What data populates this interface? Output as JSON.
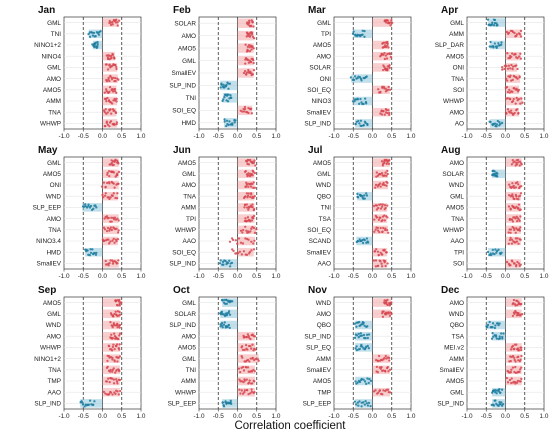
{
  "chart_data": {
    "type": "scatter",
    "xlabel": "Correlation coefficient",
    "xlim": [
      -1.0,
      1.0
    ],
    "xticks": [
      "-1.0",
      "-0.5",
      "0.0",
      "0.5",
      "1.0"
    ],
    "xtick_values": [
      -1.0,
      -0.5,
      0.0,
      0.5,
      1.0
    ],
    "reference_lines": [
      -0.5,
      0.0,
      0.5
    ],
    "colors": {
      "positive": "#d64550",
      "negative": "#1a7a9e",
      "pos_band": "#f3a6a6",
      "neg_band": "#8ec6dc"
    },
    "panels": [
      {
        "title": "Jan",
        "indices": [
          {
            "name": "GML",
            "min": 0.18,
            "max": 0.42,
            "center": 0.3
          },
          {
            "name": "TNI",
            "min": -0.36,
            "max": -0.05,
            "center": -0.2
          },
          {
            "name": "NINO1+2",
            "min": -0.25,
            "max": -0.12,
            "center": -0.18
          },
          {
            "name": "NINO4",
            "min": 0.12,
            "max": 0.32,
            "center": 0.22
          },
          {
            "name": "GML",
            "min": 0.1,
            "max": 0.38,
            "center": 0.24
          },
          {
            "name": "AMO",
            "min": 0.1,
            "max": 0.4,
            "center": 0.25
          },
          {
            "name": "AMO5",
            "min": 0.06,
            "max": 0.36,
            "center": 0.21
          },
          {
            "name": "AMM",
            "min": 0.06,
            "max": 0.38,
            "center": 0.22
          },
          {
            "name": "TNA",
            "min": 0.04,
            "max": 0.36,
            "center": 0.2
          },
          {
            "name": "WHWP",
            "min": 0.05,
            "max": 0.38,
            "center": 0.21
          }
        ]
      },
      {
        "title": "Feb",
        "indices": [
          {
            "name": "SOLAR",
            "min": 0.25,
            "max": 0.42,
            "center": 0.33
          },
          {
            "name": "AMO",
            "min": 0.23,
            "max": 0.42,
            "center": 0.32
          },
          {
            "name": "AMO5",
            "min": 0.22,
            "max": 0.42,
            "center": 0.32
          },
          {
            "name": "GML",
            "min": 0.2,
            "max": 0.42,
            "center": 0.31
          },
          {
            "name": "SmallEV",
            "min": 0.18,
            "max": 0.42,
            "center": 0.3
          },
          {
            "name": "SLP_IND",
            "min": -0.45,
            "max": -0.2,
            "center": -0.33
          },
          {
            "name": "TNI",
            "min": -0.38,
            "max": -0.15,
            "center": -0.27
          },
          {
            "name": "SOI_EQ",
            "min": 0.1,
            "max": 0.38,
            "center": 0.24
          },
          {
            "name": "HMD",
            "min": -0.35,
            "max": -0.05,
            "center": -0.2
          }
        ]
      },
      {
        "title": "Mar",
        "indices": [
          {
            "name": "GML",
            "min": 0.32,
            "max": 0.5,
            "center": 0.41
          },
          {
            "name": "TPI",
            "min": -0.5,
            "max": -0.2,
            "center": -0.35
          },
          {
            "name": "AMO5",
            "min": 0.25,
            "max": 0.42,
            "center": 0.33
          },
          {
            "name": "AMO",
            "min": 0.2,
            "max": 0.48,
            "center": 0.34
          },
          {
            "name": "SOLAR",
            "min": 0.28,
            "max": 0.45,
            "center": 0.36
          },
          {
            "name": "ONI",
            "min": -0.55,
            "max": -0.15,
            "center": -0.35
          },
          {
            "name": "SOI_EQ",
            "min": 0.15,
            "max": 0.45,
            "center": 0.3
          },
          {
            "name": "NINO3",
            "min": -0.5,
            "max": -0.15,
            "center": -0.33
          },
          {
            "name": "SmallEV",
            "min": 0.2,
            "max": 0.45,
            "center": 0.32
          },
          {
            "name": "SLP_IND",
            "min": -0.45,
            "max": -0.12,
            "center": -0.28
          }
        ]
      },
      {
        "title": "Apr",
        "indices": [
          {
            "name": "GML",
            "min": -0.45,
            "max": -0.2,
            "center": -0.32
          },
          {
            "name": "AMM",
            "min": 0.05,
            "max": 0.42,
            "center": 0.23
          },
          {
            "name": "SLP_DAR",
            "min": -0.4,
            "max": -0.1,
            "center": -0.25
          },
          {
            "name": "AMO5",
            "min": 0.05,
            "max": 0.4,
            "center": 0.22
          },
          {
            "name": "ONI",
            "min": -0.1,
            "max": 0.3,
            "center": 0.1
          },
          {
            "name": "TNA",
            "min": 0.02,
            "max": 0.38,
            "center": 0.2
          },
          {
            "name": "SOI",
            "min": 0.02,
            "max": 0.35,
            "center": 0.18
          },
          {
            "name": "WHWP",
            "min": 0.04,
            "max": 0.44,
            "center": 0.24
          },
          {
            "name": "AMO",
            "min": 0.0,
            "max": 0.35,
            "center": 0.17
          },
          {
            "name": "AO",
            "min": -0.4,
            "max": -0.1,
            "center": -0.25
          }
        ]
      },
      {
        "title": "May",
        "indices": [
          {
            "name": "GML",
            "min": 0.2,
            "max": 0.42,
            "center": 0.31
          },
          {
            "name": "AMO5",
            "min": 0.12,
            "max": 0.42,
            "center": 0.27
          },
          {
            "name": "ONI",
            "min": 0.0,
            "max": 0.42,
            "center": 0.21
          },
          {
            "name": "WND",
            "min": 0.0,
            "max": 0.4,
            "center": 0.2
          },
          {
            "name": "SLP_EEP",
            "min": -0.52,
            "max": -0.15,
            "center": -0.33
          },
          {
            "name": "AMO",
            "min": 0.05,
            "max": 0.42,
            "center": 0.23
          },
          {
            "name": "TNA",
            "min": 0.05,
            "max": 0.42,
            "center": 0.23
          },
          {
            "name": "NINO3.4",
            "min": 0.0,
            "max": 0.4,
            "center": 0.2
          },
          {
            "name": "HMD",
            "min": -0.45,
            "max": -0.15,
            "center": -0.3
          },
          {
            "name": "SmallEV",
            "min": 0.08,
            "max": 0.42,
            "center": 0.25
          }
        ]
      },
      {
        "title": "Jun",
        "indices": [
          {
            "name": "AMO5",
            "min": 0.22,
            "max": 0.45,
            "center": 0.33
          },
          {
            "name": "GML",
            "min": 0.2,
            "max": 0.44,
            "center": 0.32
          },
          {
            "name": "AMO",
            "min": 0.2,
            "max": 0.44,
            "center": 0.32
          },
          {
            "name": "TNA",
            "min": 0.18,
            "max": 0.44,
            "center": 0.31
          },
          {
            "name": "AMM",
            "min": 0.17,
            "max": 0.44,
            "center": 0.3
          },
          {
            "name": "TPI",
            "min": 0.18,
            "max": 0.44,
            "center": 0.31
          },
          {
            "name": "WHWP",
            "min": 0.1,
            "max": 0.48,
            "center": 0.29
          },
          {
            "name": "AAO",
            "min": -0.2,
            "max": 0.45,
            "center": 0.2
          },
          {
            "name": "SOI_EQ",
            "min": -0.15,
            "max": 0.42,
            "center": 0.2
          },
          {
            "name": "SLP_IND",
            "min": -0.45,
            "max": -0.15,
            "center": -0.3
          }
        ]
      },
      {
        "title": "Jul",
        "indices": [
          {
            "name": "AMO5",
            "min": 0.25,
            "max": 0.45,
            "center": 0.35
          },
          {
            "name": "GML",
            "min": 0.1,
            "max": 0.4,
            "center": 0.25
          },
          {
            "name": "WND",
            "min": 0.08,
            "max": 0.4,
            "center": 0.24
          },
          {
            "name": "QBO",
            "min": -0.4,
            "max": -0.15,
            "center": -0.27
          },
          {
            "name": "TNI",
            "min": 0.05,
            "max": 0.38,
            "center": 0.2
          },
          {
            "name": "TSA",
            "min": 0.05,
            "max": 0.38,
            "center": 0.2
          },
          {
            "name": "SOI_EQ",
            "min": 0.05,
            "max": 0.4,
            "center": 0.22
          },
          {
            "name": "SCAND",
            "min": -0.42,
            "max": -0.1,
            "center": -0.26
          },
          {
            "name": "SmallEV",
            "min": 0.05,
            "max": 0.38,
            "center": 0.22
          },
          {
            "name": "AAO",
            "min": 0.05,
            "max": 0.38,
            "center": 0.22
          }
        ]
      },
      {
        "title": "Aug",
        "indices": [
          {
            "name": "AMO",
            "min": 0.18,
            "max": 0.42,
            "center": 0.3
          },
          {
            "name": "SOLAR",
            "min": -0.35,
            "max": -0.2,
            "center": -0.27
          },
          {
            "name": "WND",
            "min": 0.1,
            "max": 0.4,
            "center": 0.25
          },
          {
            "name": "GML",
            "min": 0.1,
            "max": 0.4,
            "center": 0.25
          },
          {
            "name": "AMO5",
            "min": 0.1,
            "max": 0.4,
            "center": 0.25
          },
          {
            "name": "TNA",
            "min": 0.1,
            "max": 0.4,
            "center": 0.25
          },
          {
            "name": "WHWP",
            "min": 0.08,
            "max": 0.4,
            "center": 0.24
          },
          {
            "name": "AAO",
            "min": 0.08,
            "max": 0.4,
            "center": 0.24
          },
          {
            "name": "TPI",
            "min": -0.45,
            "max": -0.1,
            "center": -0.27
          },
          {
            "name": "SOI",
            "min": 0.05,
            "max": 0.4,
            "center": 0.22
          }
        ]
      },
      {
        "title": "Sep",
        "indices": [
          {
            "name": "AMO5",
            "min": 0.32,
            "max": 0.48,
            "center": 0.4
          },
          {
            "name": "GML",
            "min": 0.22,
            "max": 0.46,
            "center": 0.34
          },
          {
            "name": "WND",
            "min": 0.22,
            "max": 0.46,
            "center": 0.34
          },
          {
            "name": "AMO",
            "min": 0.2,
            "max": 0.46,
            "center": 0.33
          },
          {
            "name": "WHWP",
            "min": 0.15,
            "max": 0.46,
            "center": 0.3
          },
          {
            "name": "NINO1+2",
            "min": 0.12,
            "max": 0.45,
            "center": 0.29
          },
          {
            "name": "TNA",
            "min": 0.12,
            "max": 0.45,
            "center": 0.29
          },
          {
            "name": "TMP",
            "min": 0.1,
            "max": 0.45,
            "center": 0.28
          },
          {
            "name": "AAO",
            "min": 0.05,
            "max": 0.45,
            "center": 0.25
          },
          {
            "name": "SLP_IND",
            "min": -0.58,
            "max": -0.2,
            "center": -0.38
          }
        ]
      },
      {
        "title": "Oct",
        "indices": [
          {
            "name": "GML",
            "min": -0.4,
            "max": -0.15,
            "center": -0.28
          },
          {
            "name": "SOLAR",
            "min": -0.45,
            "max": -0.2,
            "center": -0.33
          },
          {
            "name": "SLP_IND",
            "min": -0.45,
            "max": -0.2,
            "center": -0.33
          },
          {
            "name": "AMO",
            "min": 0.15,
            "max": 0.45,
            "center": 0.3
          },
          {
            "name": "AMO5",
            "min": 0.1,
            "max": 0.46,
            "center": 0.28
          },
          {
            "name": "GML",
            "min": 0.1,
            "max": 0.55,
            "center": 0.32
          },
          {
            "name": "TNI",
            "min": 0.05,
            "max": 0.45,
            "center": 0.25
          },
          {
            "name": "AMM",
            "min": 0.05,
            "max": 0.45,
            "center": 0.25
          },
          {
            "name": "WHWP",
            "min": 0.05,
            "max": 0.45,
            "center": 0.25
          },
          {
            "name": "SLP_EEP",
            "min": -0.4,
            "max": -0.15,
            "center": -0.28
          }
        ]
      },
      {
        "title": "Nov",
        "indices": [
          {
            "name": "WND",
            "min": 0.3,
            "max": 0.48,
            "center": 0.39
          },
          {
            "name": "AMO",
            "min": 0.25,
            "max": 0.48,
            "center": 0.36
          },
          {
            "name": "QBO",
            "min": -0.45,
            "max": -0.15,
            "center": -0.3
          },
          {
            "name": "SLP_IND",
            "min": -0.45,
            "max": -0.1,
            "center": -0.28
          },
          {
            "name": "SLP_EQ",
            "min": -0.45,
            "max": -0.1,
            "center": -0.28
          },
          {
            "name": "AMM",
            "min": 0.1,
            "max": 0.45,
            "center": 0.28
          },
          {
            "name": "SmallEV",
            "min": 0.1,
            "max": 0.45,
            "center": 0.28
          },
          {
            "name": "AMO5",
            "min": -0.45,
            "max": -0.05,
            "center": -0.25
          },
          {
            "name": "TMP",
            "min": 0.05,
            "max": 0.45,
            "center": 0.25
          },
          {
            "name": "SLP_EEP",
            "min": -0.45,
            "max": -0.05,
            "center": -0.25
          }
        ]
      },
      {
        "title": "Dec",
        "indices": [
          {
            "name": "AMO",
            "min": 0.2,
            "max": 0.42,
            "center": 0.31
          },
          {
            "name": "WND",
            "min": 0.2,
            "max": 0.42,
            "center": 0.31
          },
          {
            "name": "QBO",
            "min": -0.5,
            "max": -0.15,
            "center": -0.33
          },
          {
            "name": "TSA",
            "min": -0.35,
            "max": -0.05,
            "center": -0.2
          },
          {
            "name": "MEI.v2",
            "min": 0.15,
            "max": 0.42,
            "center": 0.29
          },
          {
            "name": "AMM",
            "min": 0.1,
            "max": 0.42,
            "center": 0.26
          },
          {
            "name": "SmallEV",
            "min": 0.05,
            "max": 0.42,
            "center": 0.23
          },
          {
            "name": "AMO5",
            "min": 0.05,
            "max": 0.42,
            "center": 0.23
          },
          {
            "name": "GML",
            "min": -0.35,
            "max": -0.1,
            "center": -0.22
          },
          {
            "name": "SLP_IND",
            "min": -0.35,
            "max": -0.05,
            "center": -0.2
          }
        ]
      }
    ]
  }
}
